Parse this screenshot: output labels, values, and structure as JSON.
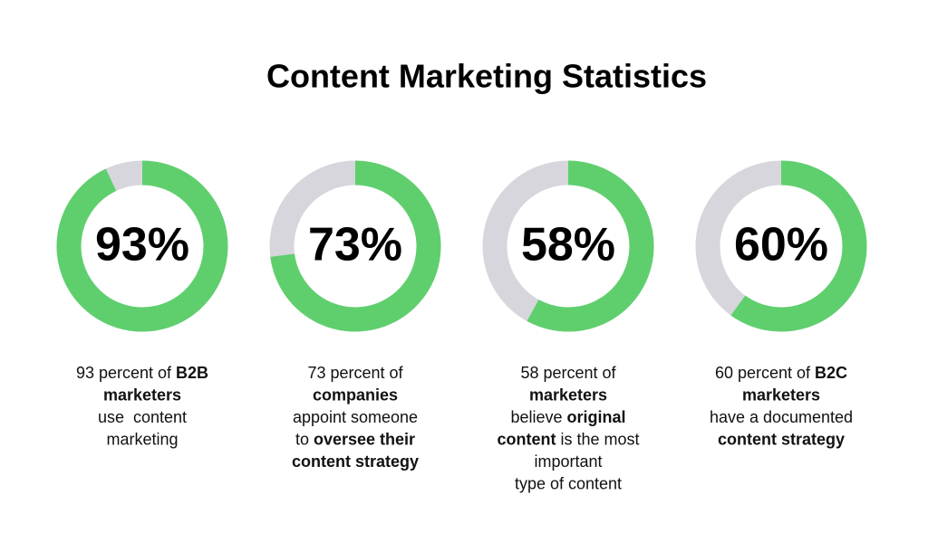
{
  "title": "Content Marketing Statistics",
  "chart_data": [
    {
      "type": "donut",
      "values": [
        93
      ],
      "value_labels": [
        "93%"
      ],
      "color": "#5fcf6e",
      "track_color": "#d6d6dc",
      "caption": [
        [
          {
            "text": "93 percent of ",
            "bold": false
          },
          {
            "text": "B2B",
            "bold": true
          }
        ],
        [
          {
            "text": "marketers",
            "bold": true
          }
        ],
        [
          {
            "text": "use  content",
            "bold": false
          }
        ],
        [
          {
            "text": "marketing",
            "bold": false
          }
        ]
      ]
    },
    {
      "type": "donut",
      "values": [
        73
      ],
      "value_labels": [
        "73%"
      ],
      "color": "#5fcf6e",
      "track_color": "#d6d6dc",
      "caption": [
        [
          {
            "text": "73 percent of",
            "bold": false
          }
        ],
        [
          {
            "text": "companies",
            "bold": true
          }
        ],
        [
          {
            "text": "appoint someone",
            "bold": false
          }
        ],
        [
          {
            "text": "to ",
            "bold": false
          },
          {
            "text": "oversee their",
            "bold": true
          }
        ],
        [
          {
            "text": "content strategy",
            "bold": true
          }
        ]
      ]
    },
    {
      "type": "donut",
      "values": [
        58
      ],
      "value_labels": [
        "58%"
      ],
      "color": "#5fcf6e",
      "track_color": "#d6d6dc",
      "caption": [
        [
          {
            "text": "58 percent of",
            "bold": false
          }
        ],
        [
          {
            "text": "marketers",
            "bold": true
          }
        ],
        [
          {
            "text": "believe ",
            "bold": false
          },
          {
            "text": "original",
            "bold": true
          }
        ],
        [
          {
            "text": "content",
            "bold": true
          },
          {
            "text": " is the most",
            "bold": false
          }
        ],
        [
          {
            "text": "important",
            "bold": false
          }
        ],
        [
          {
            "text": "type of content",
            "bold": false
          }
        ]
      ]
    },
    {
      "type": "donut",
      "values": [
        60
      ],
      "value_labels": [
        "60%"
      ],
      "color": "#5fcf6e",
      "track_color": "#d6d6dc",
      "caption": [
        [
          {
            "text": "60 percent of ",
            "bold": false
          },
          {
            "text": "B2C",
            "bold": true
          }
        ],
        [
          {
            "text": "marketers",
            "bold": true
          }
        ],
        [
          {
            "text": "have a documented",
            "bold": false
          }
        ],
        [
          {
            "text": "content strategy",
            "bold": true
          }
        ]
      ]
    }
  ]
}
